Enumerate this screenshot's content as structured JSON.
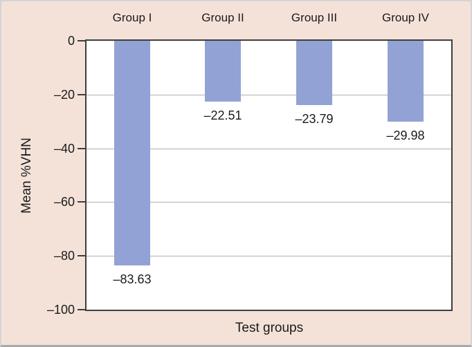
{
  "figure": {
    "background_color": "#f4e2d9",
    "plot_background": "#ffffff",
    "bar_color": "#93a2d4",
    "axis_color": "#3d3d3d",
    "gridline_color": "#b0b0b0",
    "text_color": "#1a1a1a"
  },
  "chart_data": {
    "type": "bar",
    "title": "",
    "xlabel": "Test groups",
    "ylabel": "Mean %VHN",
    "categories": [
      "Group I",
      "Group II",
      "Group III",
      "Group IV"
    ],
    "values": [
      -83.63,
      -22.51,
      -23.79,
      -29.98
    ],
    "value_labels": [
      "–83.63",
      "–22.51",
      "–23.79",
      "–29.98"
    ],
    "ylim": [
      -100,
      0
    ],
    "ytick_labels": [
      "0",
      "–20",
      "–40",
      "–60",
      "–80",
      "–100"
    ],
    "ytick_values": [
      0,
      -20,
      -40,
      -60,
      -80,
      -100
    ],
    "grid": "horizontal",
    "gridline_values": [
      -20,
      -40,
      -60,
      -80
    ],
    "legend_position": "none",
    "bar_label_position": "below-bar-end",
    "category_label_position": "above-plot"
  }
}
